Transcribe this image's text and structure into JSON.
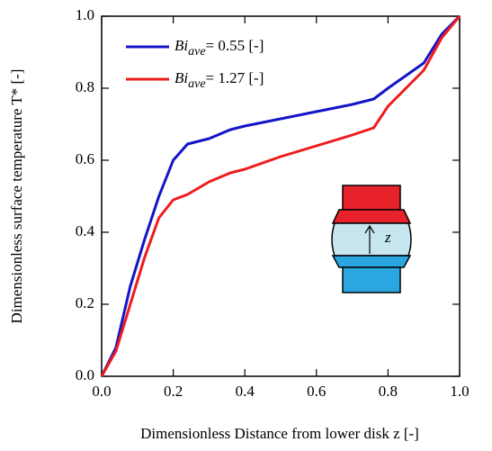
{
  "chart_data": {
    "type": "line",
    "xlabel": "Dimensionless Distance from lower disk z [-]",
    "ylabel": "Dimensionless surface temperature T* [-]",
    "x": [
      0,
      0.04,
      0.08,
      0.12,
      0.16,
      0.2,
      0.24,
      0.3,
      0.36,
      0.4,
      0.5,
      0.6,
      0.7,
      0.76,
      0.8,
      0.9,
      0.95,
      1
    ],
    "series": [
      {
        "name": "Biave= 0.55 [-]",
        "color": "#1414c8",
        "values": [
          0,
          0.08,
          0.25,
          0.38,
          0.5,
          0.6,
          0.645,
          0.66,
          0.685,
          0.695,
          0.715,
          0.735,
          0.755,
          0.77,
          0.8,
          0.87,
          0.95,
          1
        ]
      },
      {
        "name": "Biave= 1.27 [-]",
        "color": "#ee1c1c",
        "values": [
          0,
          0.07,
          0.2,
          0.33,
          0.44,
          0.49,
          0.505,
          0.54,
          0.565,
          0.575,
          0.61,
          0.64,
          0.67,
          0.69,
          0.75,
          0.85,
          0.94,
          1
        ]
      }
    ],
    "xlim": [
      0,
      1
    ],
    "ylim": [
      0,
      1
    ],
    "xticks": [
      {
        "value": 0,
        "label": "0.0"
      },
      0.2,
      0.4,
      0.6,
      0.8,
      {
        "value": 1,
        "label": "1.0"
      }
    ],
    "yticks": [
      {
        "value": 0,
        "label": "0.0"
      },
      0.2,
      0.4,
      0.6,
      0.8,
      {
        "value": 1,
        "label": "1.0"
      }
    ],
    "legend": "upper left",
    "annotations": [
      "z"
    ]
  }
}
